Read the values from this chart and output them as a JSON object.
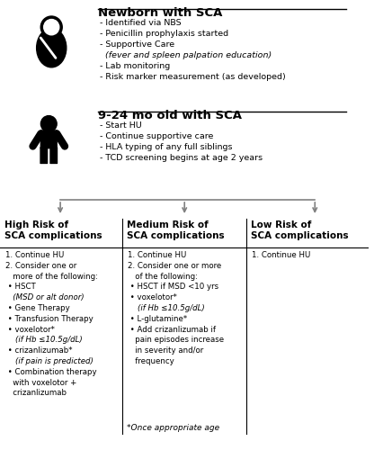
{
  "background_color": "#ffffff",
  "newborn_title": "Newborn with SCA",
  "newborn_bullets": [
    "- Identified via NBS",
    "- Penicillin prophylaxis started",
    "- Supportive Care",
    "  (fever and spleen palpation education)",
    "- Lab monitoring",
    "- Risk marker measurement (as developed)"
  ],
  "infant_title": "9-24 mo old with SCA",
  "infant_bullets": [
    "- Start HU",
    "- Continue supportive care",
    "- HLA typing of any full siblings",
    "- TCD screening begins at age 2 years"
  ],
  "col_headers": [
    "High Risk of\nSCA complications",
    "Medium Risk of\nSCA complications",
    "Low Risk of\nSCA complications"
  ],
  "footnote": "*Once appropriate age",
  "arrow_color": "#808080",
  "line_color": "#000000",
  "high_risk_lines": [
    [
      "1. Continue HU",
      false,
      false
    ],
    [
      "2. Consider one or",
      false,
      false
    ],
    [
      "   more of the following:",
      false,
      false
    ],
    [
      " • HSCT ",
      false,
      false
    ],
    [
      "   (MSD or alt donor)",
      false,
      true
    ],
    [
      " • Gene Therapy",
      false,
      false
    ],
    [
      " • Transfusion Therapy",
      false,
      false
    ],
    [
      " • voxelotor*",
      false,
      false
    ],
    [
      "    (if Hb ≤10.5g/dL)",
      false,
      true
    ],
    [
      " • crizanlizumab*",
      false,
      false
    ],
    [
      "    (if pain is predicted)",
      false,
      true
    ],
    [
      " • Combination therapy",
      false,
      false
    ],
    [
      "   with voxelotor +",
      false,
      false
    ],
    [
      "   crizanlizumab",
      false,
      false
    ]
  ],
  "medium_risk_lines": [
    [
      "1. Continue HU",
      false,
      false
    ],
    [
      "2. Consider one or more",
      false,
      false
    ],
    [
      "   of the following:",
      false,
      false
    ],
    [
      " • HSCT if MSD <10 yrs",
      false,
      false
    ],
    [
      " • voxelotor*",
      false,
      false
    ],
    [
      "    (if Hb ≤10.5g/dL)",
      false,
      true
    ],
    [
      " • L-glutamine*",
      false,
      false
    ],
    [
      " • Add crizanlizumab if",
      false,
      false
    ],
    [
      "   pain episodes increase",
      false,
      false
    ],
    [
      "   in severity and/or",
      false,
      false
    ],
    [
      "   frequency",
      false,
      false
    ]
  ],
  "low_risk_lines": [
    [
      "1. Continue HU",
      false,
      false
    ]
  ]
}
